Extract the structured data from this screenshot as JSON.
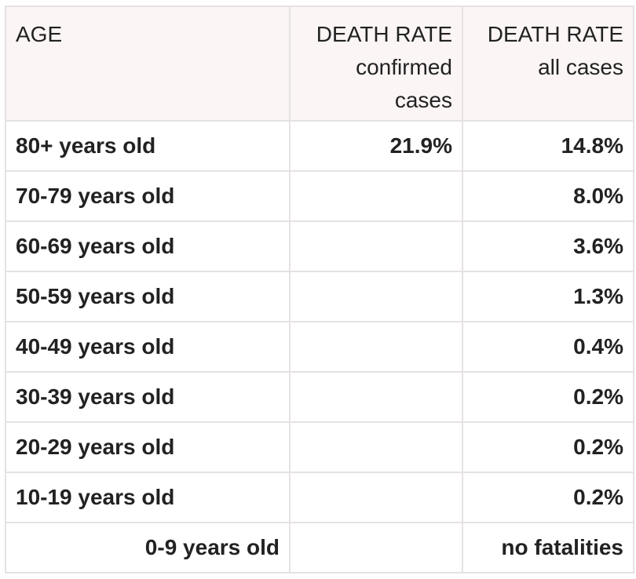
{
  "table": {
    "headers": {
      "age": "AGE",
      "confirmed_title": "DEATH RATE",
      "confirmed_sub_1": "confirmed",
      "confirmed_sub_2": "cases",
      "all_title": "DEATH RATE",
      "all_sub": "all cases"
    },
    "rows": [
      {
        "age": "80+ years old",
        "confirmed": "21.9%",
        "all": "14.8%"
      },
      {
        "age": "70-79 years old",
        "confirmed": "",
        "all": "8.0%"
      },
      {
        "age": "60-69 years old",
        "confirmed": "",
        "all": "3.6%"
      },
      {
        "age": "50-59 years old",
        "confirmed": "",
        "all": "1.3%"
      },
      {
        "age": "40-49 years old",
        "confirmed": "",
        "all": "0.4%"
      },
      {
        "age": "30-39 years old",
        "confirmed": "",
        "all": "0.2%"
      },
      {
        "age": "20-29 years old",
        "confirmed": "",
        "all": "0.2%"
      },
      {
        "age": "10-19 years old",
        "confirmed": "",
        "all": "0.2%"
      },
      {
        "age": "0-9 years old",
        "confirmed": "",
        "all": "no fatalities"
      }
    ]
  }
}
